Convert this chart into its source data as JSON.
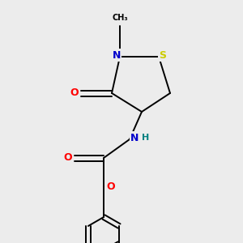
{
  "background_color": "#ececec",
  "atom_colors": {
    "C": "#000000",
    "N": "#0000cc",
    "O": "#ff0000",
    "S": "#cccc00",
    "H": "#008080"
  },
  "figsize": [
    3.0,
    3.0
  ],
  "dpi": 100,
  "bond_lw": 1.4,
  "font_size": 9,
  "font_size_small": 8
}
